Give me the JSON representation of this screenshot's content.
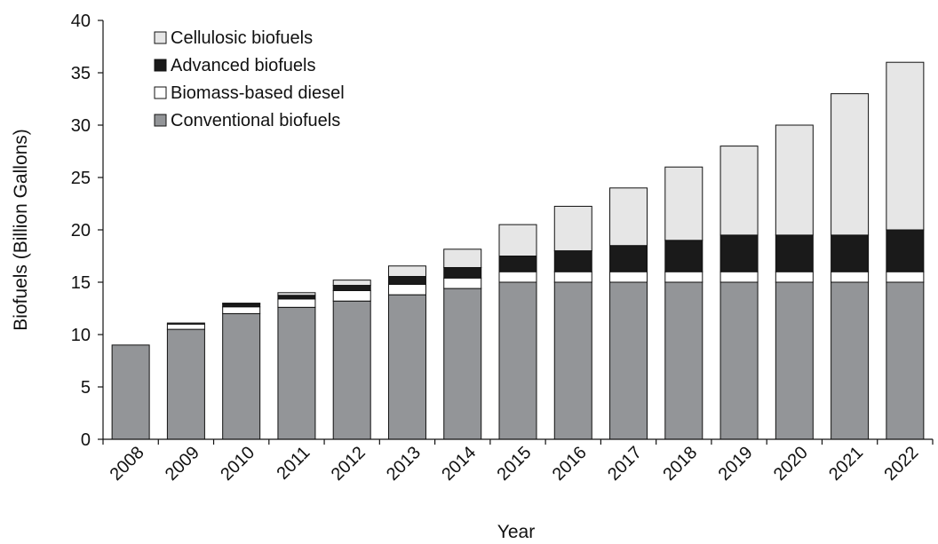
{
  "chart_data": {
    "type": "bar",
    "stacked": true,
    "title": "",
    "xlabel": "Year",
    "ylabel": "Biofuels (Billion Gallons)",
    "ylim": [
      0,
      40
    ],
    "yticks": [
      0,
      5,
      10,
      15,
      20,
      25,
      30,
      35,
      40
    ],
    "grid": false,
    "legend_position": "top-left",
    "categories": [
      "2008",
      "2009",
      "2010",
      "2011",
      "2012",
      "2013",
      "2014",
      "2015",
      "2016",
      "2017",
      "2018",
      "2019",
      "2020",
      "2021",
      "2022"
    ],
    "series": [
      {
        "name": "Conventional biofuels",
        "color": "#939598",
        "values": [
          9.0,
          10.5,
          12.0,
          12.6,
          13.2,
          13.8,
          14.4,
          15.0,
          15.0,
          15.0,
          15.0,
          15.0,
          15.0,
          15.0,
          15.0
        ]
      },
      {
        "name": "Biomass-based diesel",
        "color": "#ffffff",
        "values": [
          0,
          0.5,
          0.65,
          0.8,
          1.0,
          1.0,
          1.0,
          1.0,
          1.0,
          1.0,
          1.0,
          1.0,
          1.0,
          1.0,
          1.0
        ]
      },
      {
        "name": "Advanced biofuels",
        "color": "#1a1a1a",
        "values": [
          0,
          0.1,
          0.3,
          0.35,
          0.5,
          0.75,
          1.0,
          1.5,
          2.0,
          2.5,
          3.0,
          3.5,
          3.5,
          3.5,
          4.0
        ]
      },
      {
        "name": "Cellulosic biofuels",
        "color": "#e6e6e6",
        "values": [
          0,
          0,
          0.05,
          0.25,
          0.5,
          1.0,
          1.75,
          3.0,
          4.25,
          5.5,
          7.0,
          8.5,
          10.5,
          13.5,
          16.0
        ]
      }
    ],
    "legend_order": [
      "Cellulosic biofuels",
      "Advanced biofuels",
      "Biomass-based diesel",
      "Conventional biofuels"
    ]
  }
}
